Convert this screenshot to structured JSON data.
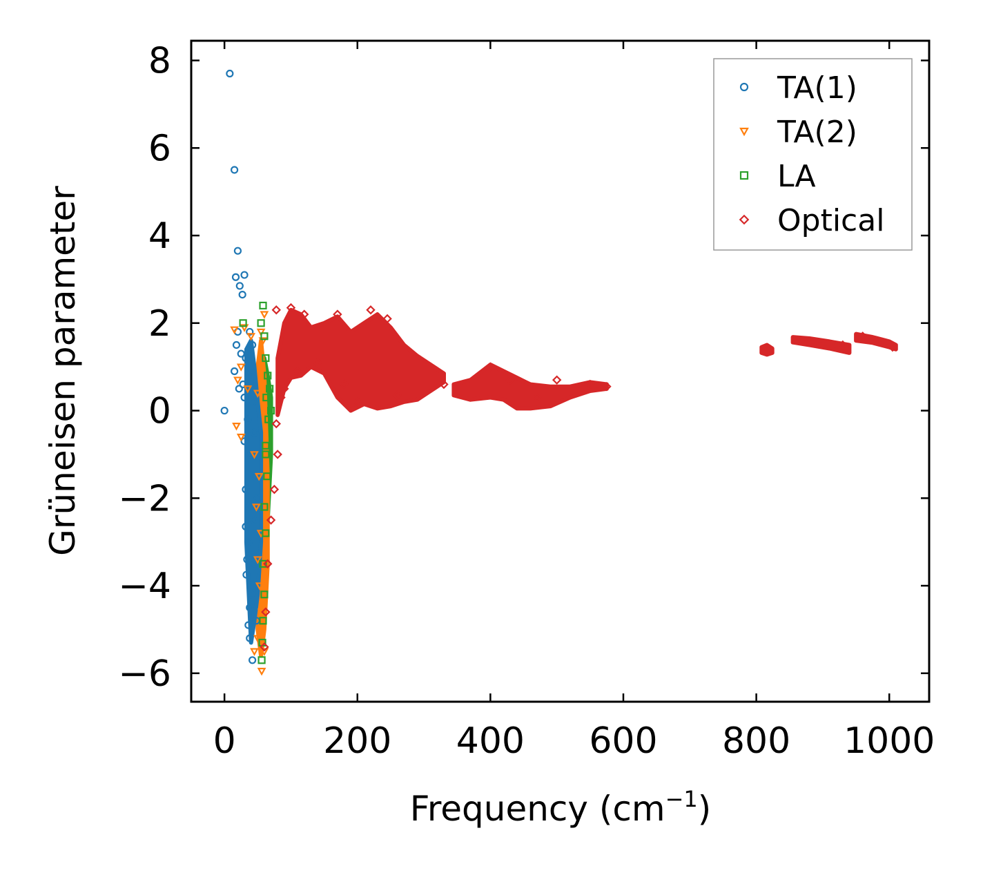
{
  "chart_data": {
    "type": "scatter",
    "title": "",
    "xlabel": "Frequency (cm",
    "xlabel_sup": "−1",
    "xlabel_close": ")",
    "ylabel": "Grüneisen parameter",
    "xlim": [
      -50,
      1060
    ],
    "ylim": [
      -6.65,
      8.45
    ],
    "xticks": [
      0,
      200,
      400,
      600,
      800,
      1000
    ],
    "yticks": [
      8,
      6,
      4,
      2,
      0,
      -2,
      -4,
      -6
    ],
    "xtick_labels": [
      "0",
      "200",
      "400",
      "600",
      "800",
      "1000"
    ],
    "ytick_labels": [
      "8",
      "6",
      "4",
      "2",
      "0",
      "−2",
      "−4",
      "−6"
    ],
    "grid": false,
    "legend_position": "top-right",
    "series": [
      {
        "name": "TA(1)",
        "marker": "circle",
        "color": "#1f77b4",
        "points": [
          [
            8,
            7.7
          ],
          [
            15,
            5.5
          ],
          [
            20,
            3.65
          ],
          [
            17,
            3.05
          ],
          [
            23,
            2.85
          ],
          [
            30,
            3.1
          ],
          [
            27,
            2.65
          ],
          [
            20,
            1.8
          ],
          [
            18,
            1.5
          ],
          [
            25,
            1.3
          ],
          [
            32,
            1.2
          ],
          [
            15,
            0.9
          ],
          [
            28,
            0.6
          ],
          [
            22,
            0.5
          ],
          [
            30,
            0.3
          ],
          [
            0,
            0
          ],
          [
            35,
            -0.2
          ],
          [
            30,
            -0.7
          ],
          [
            40,
            -1.0
          ],
          [
            32,
            -1.8
          ],
          [
            38,
            -2.2
          ],
          [
            32,
            -2.65
          ],
          [
            36,
            -3.0
          ],
          [
            34,
            -3.4
          ],
          [
            33,
            -3.75
          ],
          [
            40,
            -4.2
          ],
          [
            38,
            -4.5
          ],
          [
            36,
            -4.9
          ],
          [
            38,
            -5.2
          ],
          [
            42,
            -5.7
          ],
          [
            45,
            -1.5
          ],
          [
            44,
            -2.5
          ],
          [
            46,
            -3.5
          ],
          [
            48,
            -4.8
          ],
          [
            50,
            -2.0
          ],
          [
            40,
            0.9
          ],
          [
            42,
            1.5
          ],
          [
            38,
            1.8
          ],
          [
            45,
            -0.5
          ],
          [
            43,
            0.2
          ]
        ]
      },
      {
        "name": "TA(2)",
        "marker": "triangle-down",
        "color": "#ff7f0e",
        "points": [
          [
            15,
            1.85
          ],
          [
            30,
            1.9
          ],
          [
            40,
            1.7
          ],
          [
            25,
            1.0
          ],
          [
            20,
            0.7
          ],
          [
            35,
            0.5
          ],
          [
            18,
            -0.35
          ],
          [
            25,
            -0.6
          ],
          [
            50,
            0.4
          ],
          [
            45,
            -1.0
          ],
          [
            52,
            -1.5
          ],
          [
            48,
            -2.2
          ],
          [
            55,
            -2.8
          ],
          [
            50,
            -3.4
          ],
          [
            53,
            -4.0
          ],
          [
            56,
            -4.6
          ],
          [
            50,
            -5.2
          ],
          [
            45,
            -5.5
          ],
          [
            56,
            -5.95
          ],
          [
            60,
            -5.5
          ],
          [
            58,
            1.6
          ],
          [
            55,
            1.8
          ],
          [
            60,
            2.2
          ]
        ]
      },
      {
        "name": "LA",
        "marker": "square",
        "color": "#2ca02c",
        "points": [
          [
            28,
            2.0
          ],
          [
            58,
            2.4
          ],
          [
            55,
            2.0
          ],
          [
            60,
            1.7
          ],
          [
            62,
            1.2
          ],
          [
            65,
            0.8
          ],
          [
            63,
            0.3
          ],
          [
            66,
            -0.2
          ],
          [
            62,
            -0.8
          ],
          [
            64,
            -1.5
          ],
          [
            60,
            -2.2
          ],
          [
            62,
            -2.8
          ],
          [
            58,
            -3.5
          ],
          [
            60,
            -4.2
          ],
          [
            58,
            -4.8
          ],
          [
            57,
            -5.3
          ],
          [
            56,
            -5.7
          ],
          [
            68,
            0.5
          ],
          [
            70,
            0.0
          ],
          [
            62,
            -1.0
          ]
        ]
      },
      {
        "name": "Optical",
        "marker": "diamond",
        "color": "#d62728",
        "points": [
          [
            78,
            2.3
          ],
          [
            100,
            2.35
          ],
          [
            120,
            2.2
          ],
          [
            170,
            2.2
          ],
          [
            220,
            2.3
          ],
          [
            245,
            2.1
          ],
          [
            60,
            -5.4
          ],
          [
            62,
            -4.6
          ],
          [
            65,
            -3.5
          ],
          [
            70,
            -2.5
          ],
          [
            75,
            -1.8
          ],
          [
            80,
            -1.0
          ],
          [
            78,
            -0.3
          ],
          [
            85,
            0.3
          ],
          [
            90,
            0.5
          ],
          [
            110,
            0.9
          ],
          [
            140,
            1.1
          ],
          [
            180,
            0.6
          ],
          [
            200,
            0.2
          ],
          [
            260,
            0.35
          ],
          [
            330,
            0.6
          ],
          [
            400,
            1.0
          ],
          [
            430,
            0.7
          ],
          [
            470,
            0.3
          ],
          [
            500,
            0.7
          ],
          [
            550,
            0.6
          ],
          [
            575,
            0.55
          ],
          [
            815,
            1.4
          ],
          [
            870,
            1.6
          ],
          [
            930,
            1.5
          ],
          [
            960,
            1.7
          ],
          [
            1005,
            1.45
          ]
        ]
      }
    ],
    "bands": [
      {
        "series": "Optical",
        "x": [
          80,
          90,
          100,
          115,
          130,
          150,
          170,
          190,
          210,
          230,
          250,
          270,
          290,
          310,
          330
        ],
        "ymax": [
          1.2,
          2.0,
          2.3,
          2.2,
          1.9,
          2.0,
          2.15,
          1.8,
          2.0,
          2.2,
          1.9,
          1.5,
          1.25,
          1.05,
          0.85
        ],
        "ymin": [
          -0.1,
          0.5,
          0.75,
          0.8,
          1.0,
          0.85,
          0.3,
          0.0,
          0.15,
          0.05,
          0.1,
          0.2,
          0.25,
          0.45,
          0.65
        ]
      },
      {
        "series": "Optical",
        "x": [
          345,
          370,
          400,
          420,
          440,
          460,
          490,
          520,
          550,
          575
        ],
        "ymax": [
          0.6,
          0.7,
          1.05,
          0.9,
          0.75,
          0.6,
          0.55,
          0.55,
          0.65,
          0.6
        ],
        "ymin": [
          0.35,
          0.25,
          0.3,
          0.25,
          0.05,
          0.05,
          0.1,
          0.3,
          0.45,
          0.5
        ]
      },
      {
        "series": "Optical",
        "x": [
          808,
          816,
          824
        ],
        "ymax": [
          1.45,
          1.5,
          1.42
        ],
        "ymin": [
          1.32,
          1.28,
          1.32
        ]
      },
      {
        "series": "Optical",
        "x": [
          855,
          880,
          910,
          940
        ],
        "ymax": [
          1.68,
          1.65,
          1.58,
          1.5
        ],
        "ymin": [
          1.56,
          1.5,
          1.42,
          1.32
        ]
      },
      {
        "series": "Optical",
        "x": [
          950,
          975,
          1000,
          1010
        ],
        "ymax": [
          1.75,
          1.68,
          1.58,
          1.5
        ],
        "ymin": [
          1.6,
          1.55,
          1.45,
          1.4
        ]
      },
      {
        "series": "LA",
        "x": [
          55,
          60,
          65,
          70
        ],
        "ymax": [
          1.3,
          1.2,
          0.8,
          0.3
        ],
        "ymin": [
          -5.5,
          -4.5,
          -2.5,
          -1.0
        ]
      },
      {
        "series": "TA(2)",
        "x": [
          50,
          55,
          60,
          65
        ],
        "ymax": [
          1.0,
          1.6,
          0.8,
          -1.5
        ],
        "ymin": [
          -5.0,
          -5.6,
          -5.0,
          -3.5
        ]
      },
      {
        "series": "TA(1)",
        "x": [
          33,
          40,
          45,
          50,
          55
        ],
        "ymax": [
          1.4,
          1.6,
          1.0,
          0.2,
          -0.5
        ],
        "ymin": [
          -3.0,
          -5.3,
          -4.8,
          -4.2,
          -3.0
        ]
      }
    ]
  }
}
